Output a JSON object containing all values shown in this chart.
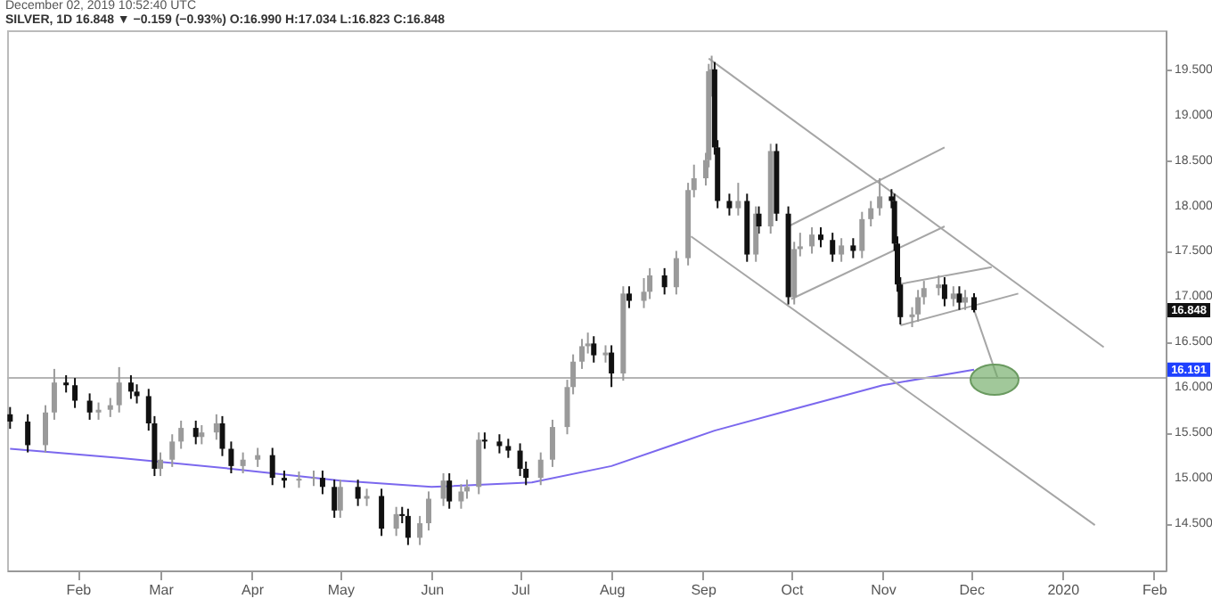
{
  "chart_data": {
    "type": "candlestick",
    "title": "SILVER, 1D 16.848 ▼ −0.159 (−0.93%) O:16.990 H:17.034 L:16.823 C:16.848",
    "subtitle": "December 02, 2019 10:52:40 UTC",
    "x": [
      "2019-01-09",
      "2019-01-15",
      "2019-01-21",
      "2019-01-24",
      "2019-01-28",
      "2019-01-31",
      "2019-02-05",
      "2019-02-08",
      "2019-02-12",
      "2019-02-15",
      "2019-02-19",
      "2019-02-21",
      "2019-02-25",
      "2019-02-27",
      "2019-03-01",
      "2019-03-05",
      "2019-03-08",
      "2019-03-13",
      "2019-03-15",
      "2019-03-20",
      "2019-03-22",
      "2019-03-25",
      "2019-03-29",
      "2019-04-03",
      "2019-04-08",
      "2019-04-12",
      "2019-04-17",
      "2019-04-22",
      "2019-04-25",
      "2019-04-29",
      "2019-05-01",
      "2019-05-07",
      "2019-05-10",
      "2019-05-15",
      "2019-05-20",
      "2019-05-22",
      "2019-05-24",
      "2019-05-28",
      "2019-05-31",
      "2019-06-05",
      "2019-06-07",
      "2019-06-11",
      "2019-06-13",
      "2019-06-17",
      "2019-06-19",
      "2019-06-24",
      "2019-06-27",
      "2019-07-01",
      "2019-07-03",
      "2019-07-08",
      "2019-07-12",
      "2019-07-17",
      "2019-07-19",
      "2019-07-22",
      "2019-07-24",
      "2019-07-26",
      "2019-07-30",
      "2019-08-01",
      "2019-08-05",
      "2019-08-07",
      "2019-08-12",
      "2019-08-14",
      "2019-08-19",
      "2019-08-23",
      "2019-08-27",
      "2019-08-29",
      "2019-09-02",
      "2019-09-03",
      "2019-09-04",
      "2019-09-05",
      "2019-09-06",
      "2019-09-10",
      "2019-09-13",
      "2019-09-16",
      "2019-09-19",
      "2019-09-20",
      "2019-09-24",
      "2019-09-26",
      "2019-09-30",
      "2019-10-02",
      "2019-10-04",
      "2019-10-08",
      "2019-10-11",
      "2019-10-15",
      "2019-10-18",
      "2019-10-22",
      "2019-10-25",
      "2019-10-28",
      "2019-10-31",
      "2019-11-04",
      "2019-11-05",
      "2019-11-06",
      "2019-11-07",
      "2019-11-11",
      "2019-11-13",
      "2019-11-15",
      "2019-11-20",
      "2019-11-22",
      "2019-11-25",
      "2019-11-27",
      "2019-11-29",
      "2019-12-02"
    ],
    "ohlc": [
      [
        15.7,
        15.78,
        15.54,
        15.62
      ],
      [
        15.62,
        15.7,
        15.28,
        15.36
      ],
      [
        15.36,
        15.8,
        15.28,
        15.72
      ],
      [
        15.72,
        16.2,
        15.64,
        16.05
      ],
      [
        16.05,
        16.13,
        15.94,
        16.02
      ],
      [
        16.02,
        16.1,
        15.77,
        15.85
      ],
      [
        15.85,
        15.93,
        15.64,
        15.72
      ],
      [
        15.72,
        15.83,
        15.64,
        15.75
      ],
      [
        15.75,
        15.88,
        15.67,
        15.8
      ],
      [
        15.8,
        16.22,
        15.72,
        16.05
      ],
      [
        16.05,
        16.13,
        15.87,
        15.95
      ],
      [
        15.95,
        16.03,
        15.82,
        15.9
      ],
      [
        15.9,
        15.98,
        15.52,
        15.6
      ],
      [
        15.6,
        15.68,
        15.02,
        15.1
      ],
      [
        15.1,
        15.28,
        15.02,
        15.2
      ],
      [
        15.2,
        15.48,
        15.12,
        15.4
      ],
      [
        15.4,
        15.63,
        15.32,
        15.55
      ],
      [
        15.55,
        15.63,
        15.37,
        15.45
      ],
      [
        15.45,
        15.58,
        15.37,
        15.5
      ],
      [
        15.5,
        15.7,
        15.42,
        15.6
      ],
      [
        15.6,
        15.68,
        15.24,
        15.32
      ],
      [
        15.32,
        15.4,
        15.05,
        15.13
      ],
      [
        15.13,
        15.28,
        15.05,
        15.2
      ],
      [
        15.2,
        15.33,
        15.12,
        15.25
      ],
      [
        15.25,
        15.33,
        14.92,
        15.0
      ],
      [
        15.0,
        15.08,
        14.89,
        14.97
      ],
      [
        14.97,
        15.07,
        14.89,
        14.99
      ],
      [
        14.99,
        15.08,
        14.91,
        15.0
      ],
      [
        15.0,
        15.08,
        14.82,
        14.9
      ],
      [
        14.9,
        14.98,
        14.56,
        14.64
      ],
      [
        14.64,
        14.98,
        14.56,
        14.9
      ],
      [
        14.9,
        14.98,
        14.69,
        14.77
      ],
      [
        14.77,
        14.88,
        14.69,
        14.8
      ],
      [
        14.8,
        14.88,
        14.36,
        14.44
      ],
      [
        14.44,
        14.68,
        14.36,
        14.6
      ],
      [
        14.6,
        14.68,
        14.5,
        14.58
      ],
      [
        14.58,
        14.66,
        14.26,
        14.34
      ],
      [
        14.34,
        14.58,
        14.26,
        14.5
      ],
      [
        14.5,
        14.85,
        14.42,
        14.77
      ],
      [
        14.77,
        15.05,
        14.69,
        14.97
      ],
      [
        14.97,
        15.05,
        14.66,
        14.74
      ],
      [
        14.74,
        14.93,
        14.66,
        14.85
      ],
      [
        14.85,
        14.98,
        14.77,
        14.9
      ],
      [
        14.9,
        15.5,
        14.82,
        15.42
      ],
      [
        15.42,
        15.5,
        15.32,
        15.4
      ],
      [
        15.4,
        15.48,
        15.27,
        15.35
      ],
      [
        15.35,
        15.43,
        15.22,
        15.3
      ],
      [
        15.3,
        15.38,
        15.02,
        15.1
      ],
      [
        15.1,
        15.18,
        14.92,
        15.0
      ],
      [
        15.0,
        15.28,
        14.92,
        15.2
      ],
      [
        15.2,
        15.64,
        15.12,
        15.56
      ],
      [
        15.56,
        16.08,
        15.48,
        16.0
      ],
      [
        16.0,
        16.36,
        15.92,
        16.28
      ],
      [
        16.28,
        16.53,
        16.2,
        16.45
      ],
      [
        16.45,
        16.6,
        16.37,
        16.48
      ],
      [
        16.48,
        16.56,
        16.27,
        16.35
      ],
      [
        16.35,
        16.46,
        16.27,
        16.38
      ],
      [
        16.38,
        16.46,
        16.0,
        16.15
      ],
      [
        16.15,
        17.11,
        16.07,
        17.03
      ],
      [
        17.03,
        17.11,
        16.87,
        16.95
      ],
      [
        16.95,
        17.2,
        16.87,
        17.05
      ],
      [
        17.05,
        17.31,
        16.97,
        17.23
      ],
      [
        17.23,
        17.31,
        17.02,
        17.1
      ],
      [
        17.1,
        17.5,
        17.02,
        17.42
      ],
      [
        17.42,
        18.25,
        17.34,
        18.17
      ],
      [
        18.17,
        18.45,
        18.09,
        18.3
      ],
      [
        18.3,
        18.58,
        18.22,
        18.5
      ],
      [
        18.5,
        19.56,
        18.42,
        19.48
      ],
      [
        19.48,
        19.65,
        19.2,
        19.5
      ],
      [
        19.5,
        19.58,
        18.56,
        18.64
      ],
      [
        18.64,
        18.72,
        17.97,
        18.05
      ],
      [
        18.05,
        18.13,
        17.89,
        17.97
      ],
      [
        17.97,
        18.25,
        17.89,
        18.05
      ],
      [
        18.05,
        18.13,
        17.38,
        17.46
      ],
      [
        17.46,
        17.99,
        17.38,
        17.91
      ],
      [
        17.91,
        17.99,
        17.69,
        17.77
      ],
      [
        17.77,
        18.68,
        17.69,
        18.6
      ],
      [
        18.6,
        18.68,
        17.83,
        17.91
      ],
      [
        17.91,
        17.99,
        16.91,
        16.99
      ],
      [
        16.99,
        17.6,
        16.91,
        17.52
      ],
      [
        17.52,
        17.7,
        17.44,
        17.55
      ],
      [
        17.55,
        17.76,
        17.47,
        17.68
      ],
      [
        17.68,
        17.76,
        17.54,
        17.62
      ],
      [
        17.62,
        17.7,
        17.38,
        17.46
      ],
      [
        17.46,
        17.64,
        17.38,
        17.56
      ],
      [
        17.56,
        17.64,
        17.42,
        17.5
      ],
      [
        17.5,
        17.93,
        17.42,
        17.85
      ],
      [
        17.85,
        18.05,
        17.77,
        17.97
      ],
      [
        17.97,
        18.3,
        17.89,
        18.1
      ],
      [
        18.1,
        18.18,
        17.97,
        18.05
      ],
      [
        18.05,
        18.13,
        17.5,
        17.58
      ],
      [
        17.58,
        17.66,
        17.05,
        17.13
      ],
      [
        17.13,
        17.21,
        16.69,
        16.77
      ],
      [
        16.77,
        16.88,
        16.66,
        16.8
      ],
      [
        16.8,
        17.07,
        16.72,
        16.99
      ],
      [
        16.99,
        17.17,
        16.91,
        17.09
      ],
      [
        17.09,
        17.23,
        17.01,
        17.13
      ],
      [
        17.13,
        17.21,
        16.89,
        16.97
      ],
      [
        16.97,
        17.11,
        16.89,
        17.03
      ],
      [
        17.03,
        17.11,
        16.85,
        16.93
      ],
      [
        16.93,
        17.07,
        16.85,
        16.99
      ],
      [
        16.99,
        17.034,
        16.823,
        16.848
      ]
    ],
    "series": [
      {
        "type": "line",
        "color": "#7b68ee",
        "x": [
          "2019-01-09",
          "2019-02-15",
          "2019-03-25",
          "2019-05-01",
          "2019-06-01",
          "2019-07-05",
          "2019-08-01",
          "2019-09-05",
          "2019-10-01",
          "2019-11-01",
          "2019-12-02"
        ],
        "values": [
          15.32,
          15.22,
          15.1,
          14.97,
          14.9,
          14.95,
          15.13,
          15.52,
          15.75,
          16.02,
          16.191
        ]
      },
      {
        "type": "line",
        "color": "#a6a6a6",
        "x": [
          "2019-09-03",
          "2020-01-15"
        ],
        "values": [
          19.62,
          16.44
        ]
      },
      {
        "type": "line",
        "color": "#a6a6a6",
        "x": [
          "2019-08-28",
          "2020-01-12"
        ],
        "values": [
          17.66,
          14.48
        ]
      },
      {
        "type": "line",
        "color": "#a6a6a6",
        "x": [
          "2019-09-30",
          "2019-11-22"
        ],
        "values": [
          17.77,
          18.64
        ]
      },
      {
        "type": "line",
        "color": "#a6a6a6",
        "x": [
          "2019-10-01",
          "2019-11-22"
        ],
        "values": [
          16.97,
          17.77
        ]
      },
      {
        "type": "line",
        "color": "#a6a6a6",
        "x": [
          "2019-11-06",
          "2019-12-08"
        ],
        "values": [
          17.13,
          17.32
        ]
      },
      {
        "type": "line",
        "color": "#a6a6a6",
        "x": [
          "2019-11-07",
          "2019-12-17"
        ],
        "values": [
          16.68,
          17.03
        ]
      },
      {
        "type": "line",
        "color": "#a6a6a6",
        "x": [
          "2019-12-02",
          "2019-12-10"
        ],
        "values": [
          16.85,
          16.1
        ]
      }
    ],
    "ref_lines": [
      {
        "axis": "y",
        "value": 16.1,
        "color": "#b4b4b4"
      }
    ],
    "annotations": [
      "16.848",
      "16.191"
    ],
    "xlim": [
      "2019-01-08",
      "2020-02-05"
    ],
    "xticks": [
      {
        "value": "2019-02-01",
        "label": "Feb"
      },
      {
        "value": "2019-03-01",
        "label": "Mar"
      },
      {
        "value": "2019-04-01",
        "label": "Apr"
      },
      {
        "value": "2019-05-01",
        "label": "May"
      },
      {
        "value": "2019-06-01",
        "label": "Jun"
      },
      {
        "value": "2019-07-01",
        "label": "Jul"
      },
      {
        "value": "2019-08-01",
        "label": "Aug"
      },
      {
        "value": "2019-09-01",
        "label": "Sep"
      },
      {
        "value": "2019-10-01",
        "label": "Oct"
      },
      {
        "value": "2019-11-01",
        "label": "Nov"
      },
      {
        "value": "2019-12-01",
        "label": "Dec"
      },
      {
        "value": "2020-01-01",
        "label": "2020"
      },
      {
        "value": "2020-02-01",
        "label": "Feb"
      }
    ],
    "ylim": [
      13.98,
      19.93
    ],
    "yticks": [
      {
        "value": 14.5,
        "label": "14.500"
      },
      {
        "value": 15,
        "label": "15.000"
      },
      {
        "value": 15.5,
        "label": "15.500"
      },
      {
        "value": 16,
        "label": "16.000"
      },
      {
        "value": 16.5,
        "label": "16.500"
      },
      {
        "value": 17,
        "label": "17.000"
      },
      {
        "value": 17.5,
        "label": "17.500"
      },
      {
        "value": 18,
        "label": "18.000"
      },
      {
        "value": 18.5,
        "label": "18.500"
      },
      {
        "value": 19,
        "label": "19.000"
      },
      {
        "value": 19.5,
        "label": "19.500"
      }
    ]
  }
}
